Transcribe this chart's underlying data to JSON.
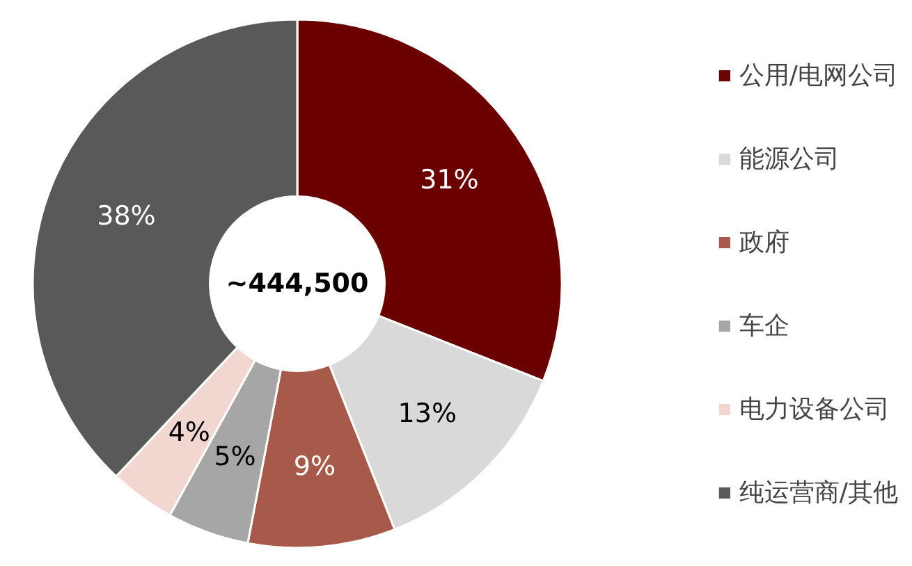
{
  "chart_data": {
    "type": "donut",
    "categories": [
      "公用/电网公司",
      "能源公司",
      "政府",
      "车企",
      "电力设备公司",
      "纯运营商/其他"
    ],
    "values": [
      31,
      13,
      9,
      5,
      4,
      38
    ],
    "colors": [
      "#6b0000",
      "#d9d9d9",
      "#a85a4a",
      "#a6a6a6",
      "#f2d6d0",
      "#595959"
    ],
    "annotations": [
      "~444,500"
    ],
    "value_labels": [
      "31%",
      "13%",
      "9%",
      "5%",
      "4%",
      "38%"
    ],
    "legend": "right"
  }
}
